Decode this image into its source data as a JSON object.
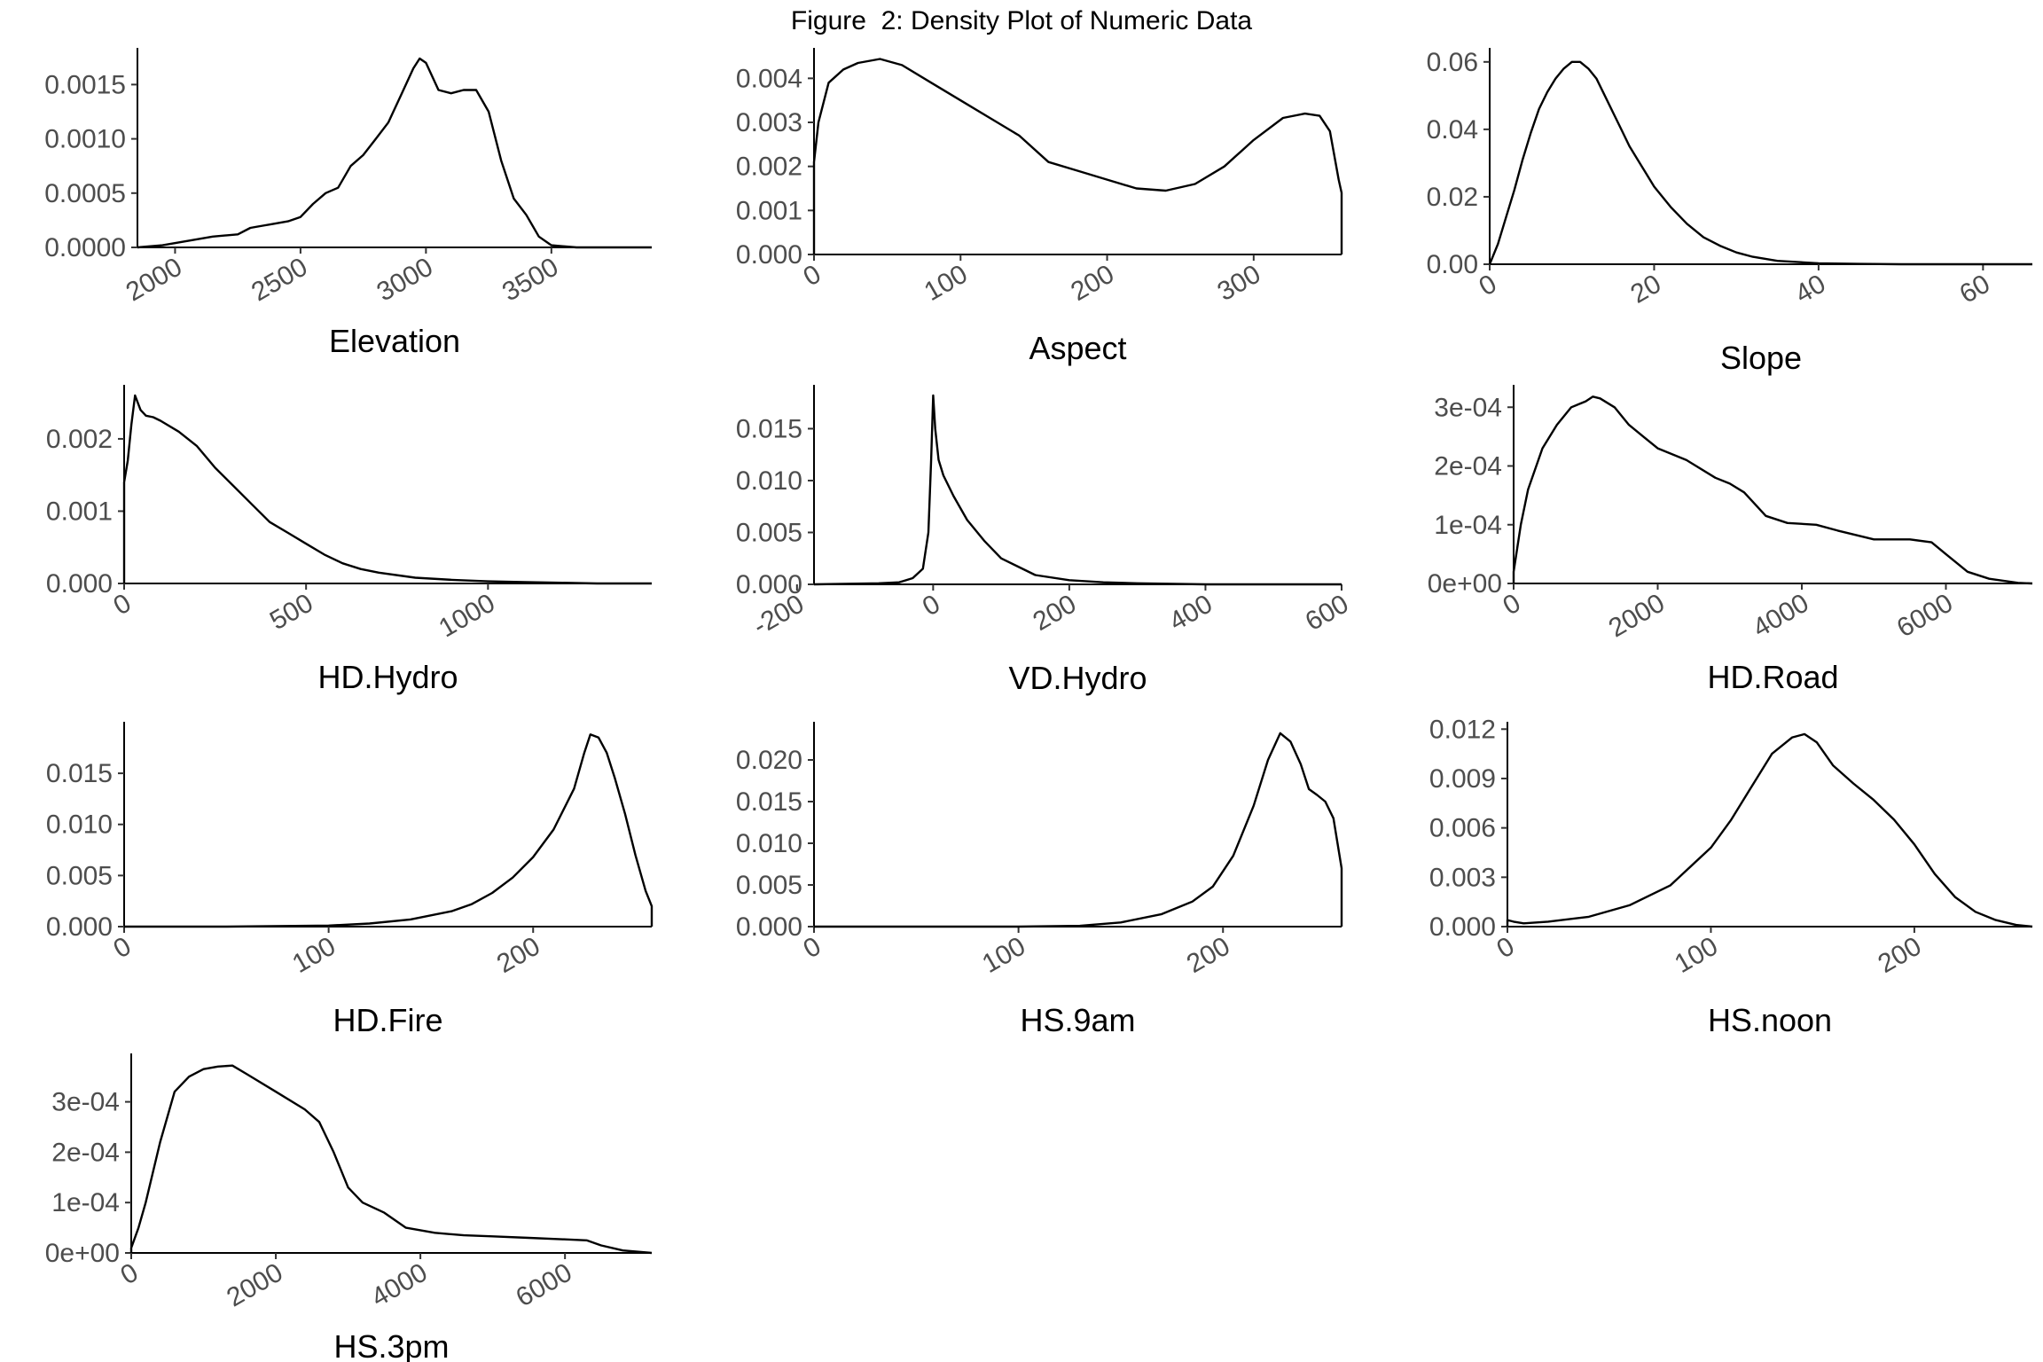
{
  "figure_title": "Figure  2: Density Plot of Numeric Data",
  "chart_data": [
    {
      "type": "line",
      "xlabel": "Elevation",
      "xlim": [
        1850,
        3900
      ],
      "ylim": [
        0,
        0.00174
      ],
      "xticks": [
        2000,
        2500,
        3000,
        3500
      ],
      "xtick_labels": [
        "2000",
        "2500",
        "3000",
        "3500"
      ],
      "yticks": [
        0,
        0.0005,
        0.001,
        0.0015
      ],
      "ytick_labels": [
        "0.0000",
        "0.0005",
        "0.0010",
        "0.0015"
      ],
      "x": [
        1850,
        1950,
        2050,
        2150,
        2250,
        2300,
        2350,
        2400,
        2450,
        2500,
        2550,
        2600,
        2650,
        2700,
        2750,
        2800,
        2850,
        2900,
        2950,
        2975,
        3000,
        3050,
        3100,
        3150,
        3200,
        3250,
        3300,
        3350,
        3400,
        3450,
        3500,
        3600,
        3700,
        3900
      ],
      "y": [
        0,
        2e-05,
        6e-05,
        0.0001,
        0.00012,
        0.00018,
        0.0002,
        0.00022,
        0.00024,
        0.00028,
        0.0004,
        0.0005,
        0.00055,
        0.00075,
        0.00085,
        0.001,
        0.00115,
        0.0014,
        0.00165,
        0.00174,
        0.0017,
        0.00145,
        0.00142,
        0.00145,
        0.00145,
        0.00125,
        0.0008,
        0.00045,
        0.0003,
        0.0001,
        2e-05,
        0,
        0,
        0
      ]
    },
    {
      "type": "line",
      "xlabel": "Aspect",
      "xlim": [
        0,
        360
      ],
      "ylim": [
        0,
        0.00445
      ],
      "xticks": [
        0,
        100,
        200,
        300
      ],
      "xtick_labels": [
        "0",
        "100",
        "200",
        "300"
      ],
      "yticks": [
        0,
        0.001,
        0.002,
        0.003,
        0.004
      ],
      "ytick_labels": [
        "0.000",
        "0.001",
        "0.002",
        "0.003",
        "0.004"
      ],
      "x": [
        0,
        0,
        3,
        10,
        20,
        30,
        45,
        60,
        80,
        100,
        120,
        140,
        160,
        180,
        200,
        220,
        240,
        260,
        280,
        300,
        320,
        335,
        345,
        352,
        358,
        360,
        360
      ],
      "y": [
        0,
        0.0021,
        0.003,
        0.0039,
        0.0042,
        0.00435,
        0.00444,
        0.0043,
        0.0039,
        0.0035,
        0.0031,
        0.0027,
        0.0021,
        0.0019,
        0.0017,
        0.0015,
        0.00145,
        0.0016,
        0.002,
        0.0026,
        0.0031,
        0.0032,
        0.00315,
        0.0028,
        0.0017,
        0.0014,
        0
      ]
    },
    {
      "type": "line",
      "xlabel": "Slope",
      "xlim": [
        0,
        66
      ],
      "ylim": [
        0,
        0.061
      ],
      "xticks": [
        0,
        20,
        40,
        60
      ],
      "xtick_labels": [
        "0",
        "20",
        "40",
        "60"
      ],
      "yticks": [
        0,
        0.02,
        0.04,
        0.06
      ],
      "ytick_labels": [
        "0.00",
        "0.02",
        "0.04",
        "0.06"
      ],
      "x": [
        0,
        1,
        2,
        3,
        4,
        5,
        6,
        7,
        8,
        9,
        10,
        11,
        12,
        13,
        14,
        15,
        16,
        17,
        18,
        19,
        20,
        22,
        24,
        26,
        28,
        30,
        32,
        35,
        40,
        45,
        50,
        55,
        66
      ],
      "y": [
        0,
        0.006,
        0.014,
        0.022,
        0.031,
        0.039,
        0.046,
        0.051,
        0.055,
        0.058,
        0.06,
        0.06,
        0.058,
        0.055,
        0.05,
        0.045,
        0.04,
        0.035,
        0.031,
        0.027,
        0.023,
        0.017,
        0.012,
        0.008,
        0.0055,
        0.0035,
        0.0022,
        0.001,
        0.0003,
        0.0001,
        0,
        0,
        0
      ]
    },
    {
      "type": "line",
      "xlabel": "HD.Hydro",
      "xlim": [
        0,
        1450
      ],
      "ylim": [
        0,
        0.0026
      ],
      "xticks": [
        0,
        500,
        1000
      ],
      "xtick_labels": [
        "0",
        "500",
        "1000"
      ],
      "yticks": [
        0,
        0.001,
        0.002
      ],
      "ytick_labels": [
        "0.000",
        "0.001",
        "0.002"
      ],
      "x": [
        0,
        0,
        10,
        20,
        30,
        45,
        60,
        80,
        100,
        150,
        200,
        250,
        300,
        350,
        400,
        450,
        500,
        550,
        600,
        650,
        700,
        800,
        900,
        1000,
        1100,
        1200,
        1300,
        1450
      ],
      "y": [
        0,
        0.0014,
        0.0017,
        0.0022,
        0.0026,
        0.0024,
        0.00232,
        0.0023,
        0.00225,
        0.0021,
        0.0019,
        0.0016,
        0.00135,
        0.0011,
        0.00085,
        0.0007,
        0.00055,
        0.0004,
        0.00028,
        0.0002,
        0.00015,
        8e-05,
        5e-05,
        3e-05,
        2e-05,
        1e-05,
        0,
        0
      ]
    },
    {
      "type": "line",
      "xlabel": "VD.Hydro",
      "xlim": [
        -175,
        600
      ],
      "ylim": [
        0,
        0.0182
      ],
      "xticks": [
        -200,
        0,
        200,
        400,
        600
      ],
      "xtick_labels": [
        "-200",
        "0",
        "200",
        "400",
        "600"
      ],
      "yticks": [
        0,
        0.005,
        0.01,
        0.015
      ],
      "ytick_labels": [
        "0.000",
        "0.005",
        "0.010",
        "0.015"
      ],
      "x": [
        -175,
        -80,
        -50,
        -30,
        -15,
        -7,
        -3,
        0,
        3,
        8,
        15,
        30,
        50,
        75,
        100,
        150,
        200,
        250,
        300,
        400,
        600
      ],
      "y": [
        0,
        0.0001,
        0.0002,
        0.0006,
        0.0015,
        0.005,
        0.012,
        0.0182,
        0.015,
        0.012,
        0.0105,
        0.0085,
        0.0062,
        0.0042,
        0.0025,
        0.0009,
        0.0004,
        0.0002,
        0.0001,
        0,
        0
      ]
    },
    {
      "type": "line",
      "xlabel": "HD.Road",
      "xlim": [
        0,
        7200
      ],
      "ylim": [
        0,
        0.00032
      ],
      "xticks": [
        0,
        2000,
        4000,
        6000
      ],
      "xtick_labels": [
        "0",
        "2000",
        "4000",
        "6000"
      ],
      "yticks": [
        0,
        0.0001,
        0.0002,
        0.0003
      ],
      "ytick_labels": [
        "0e+00",
        "1e-04",
        "2e-04",
        "3e-04"
      ],
      "x": [
        0,
        0,
        100,
        200,
        400,
        600,
        800,
        1000,
        1100,
        1200,
        1400,
        1600,
        1800,
        2000,
        2400,
        2800,
        3000,
        3200,
        3500,
        3800,
        4200,
        4500,
        5000,
        5500,
        5800,
        6000,
        6300,
        6600,
        7000,
        7200
      ],
      "y": [
        0,
        2e-05,
        0.0001,
        0.00016,
        0.00023,
        0.00027,
        0.0003,
        0.00031,
        0.000318,
        0.000315,
        0.0003,
        0.00027,
        0.00025,
        0.00023,
        0.00021,
        0.00018,
        0.00017,
        0.000155,
        0.000115,
        0.000103,
        0.0001,
        9e-05,
        7.5e-05,
        7.5e-05,
        7e-05,
        5e-05,
        2e-05,
        8e-06,
        1e-06,
        0
      ]
    },
    {
      "type": "line",
      "xlabel": "HD.Fire",
      "xlim": [
        0,
        258
      ],
      "ylim": [
        0,
        0.019
      ],
      "xticks": [
        0,
        100,
        200
      ],
      "xtick_labels": [
        "0",
        "100",
        "200"
      ],
      "yticks": [
        0,
        0.005,
        0.01,
        0.015
      ],
      "ytick_labels": [
        "0.000",
        "0.005",
        "0.010",
        "0.015"
      ],
      "x": [
        0,
        50,
        100,
        120,
        140,
        160,
        170,
        180,
        190,
        200,
        210,
        220,
        225,
        228,
        232,
        236,
        240,
        245,
        250,
        255,
        258,
        258
      ],
      "y": [
        0,
        0,
        0.0001,
        0.0003,
        0.0007,
        0.0015,
        0.0022,
        0.0033,
        0.0048,
        0.0068,
        0.0095,
        0.0135,
        0.017,
        0.0188,
        0.0185,
        0.017,
        0.0145,
        0.011,
        0.007,
        0.0035,
        0.002,
        0
      ]
    },
    {
      "type": "line",
      "xlabel": "HS.9am",
      "xlim": [
        0,
        258
      ],
      "ylim": [
        0,
        0.0233
      ],
      "xticks": [
        0,
        100,
        200
      ],
      "xtick_labels": [
        "0",
        "100",
        "200"
      ],
      "yticks": [
        0,
        0.005,
        0.01,
        0.015,
        0.02
      ],
      "ytick_labels": [
        "0.000",
        "0.005",
        "0.010",
        "0.015",
        "0.020"
      ],
      "x": [
        0,
        100,
        130,
        150,
        170,
        185,
        195,
        205,
        215,
        222,
        228,
        233,
        238,
        242,
        246,
        250,
        254,
        256,
        258,
        258
      ],
      "y": [
        0,
        0,
        0.0001,
        0.0005,
        0.0015,
        0.003,
        0.0048,
        0.0085,
        0.0145,
        0.02,
        0.0232,
        0.0222,
        0.0195,
        0.0165,
        0.0158,
        0.015,
        0.013,
        0.01,
        0.007,
        0
      ]
    },
    {
      "type": "line",
      "xlabel": "HS.noon",
      "xlim": [
        0,
        258
      ],
      "ylim": [
        0,
        0.0118
      ],
      "xticks": [
        0,
        100,
        200
      ],
      "xtick_labels": [
        "0",
        "100",
        "200"
      ],
      "yticks": [
        0,
        0.003,
        0.006,
        0.009,
        0.012
      ],
      "ytick_labels": [
        "0.000",
        "0.003",
        "0.006",
        "0.009",
        "0.012"
      ],
      "x": [
        0,
        0,
        3,
        8,
        20,
        40,
        60,
        80,
        100,
        110,
        120,
        130,
        140,
        146,
        152,
        160,
        170,
        180,
        190,
        200,
        210,
        220,
        230,
        240,
        250,
        258
      ],
      "y": [
        0,
        0.0004,
        0.0003,
        0.0002,
        0.0003,
        0.0006,
        0.0013,
        0.0025,
        0.0048,
        0.0065,
        0.0085,
        0.0105,
        0.0115,
        0.0117,
        0.0112,
        0.0098,
        0.0087,
        0.0077,
        0.0065,
        0.005,
        0.0032,
        0.0018,
        0.0009,
        0.0004,
        0.0001,
        0
      ]
    },
    {
      "type": "line",
      "xlabel": "HS.3pm",
      "xlim": [
        0,
        7200
      ],
      "ylim": [
        0,
        0.000375
      ],
      "xticks": [
        0,
        2000,
        4000,
        6000
      ],
      "xtick_labels": [
        "0",
        "2000",
        "4000",
        "6000"
      ],
      "yticks": [
        0,
        0.0001,
        0.0002,
        0.0003
      ],
      "ytick_labels": [
        "0e+00",
        "1e-04",
        "2e-04",
        "3e-04"
      ],
      "x": [
        0,
        0,
        100,
        200,
        400,
        600,
        800,
        1000,
        1200,
        1400,
        1600,
        2000,
        2400,
        2600,
        2800,
        3000,
        3200,
        3500,
        3800,
        4200,
        4600,
        5000,
        5500,
        6000,
        6300,
        6500,
        6800,
        7200
      ],
      "y": [
        0,
        1e-05,
        5e-05,
        0.0001,
        0.00022,
        0.00032,
        0.00035,
        0.000365,
        0.00037,
        0.000372,
        0.000355,
        0.00032,
        0.000285,
        0.00026,
        0.0002,
        0.00013,
        0.0001,
        8e-05,
        5e-05,
        4e-05,
        3.5e-05,
        3.3e-05,
        3e-05,
        2.7e-05,
        2.5e-05,
        1.5e-05,
        5e-06,
        0
      ]
    }
  ]
}
